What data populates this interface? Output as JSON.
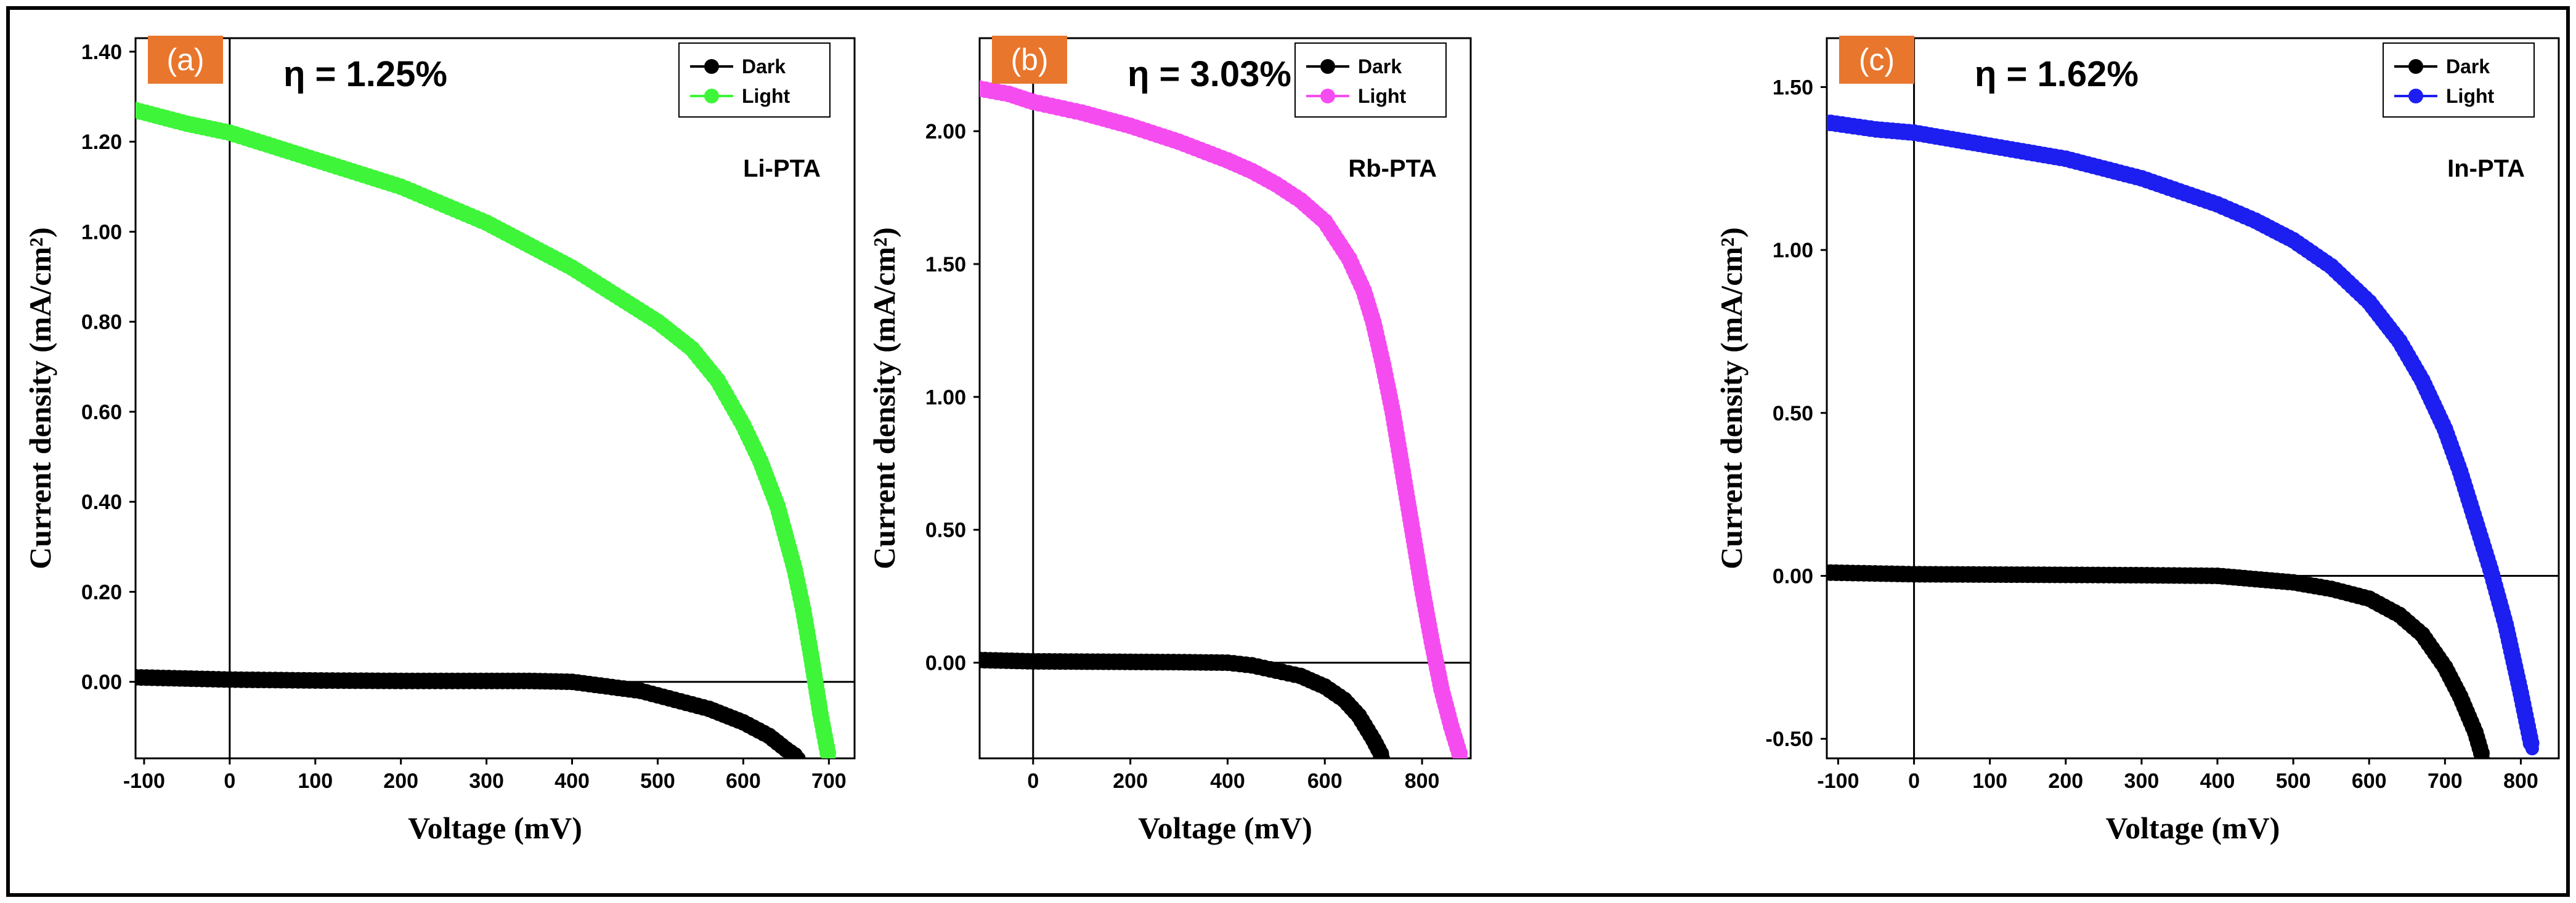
{
  "figure": {
    "panel_badge_color": "#e8762d",
    "dark_color": "#000000"
  },
  "chart_data": [
    {
      "type": "line",
      "panel_label": "(a)",
      "efficiency_label": "η = 1.25%",
      "material_label": "Li-PTA",
      "xlabel": "Voltage (mV)",
      "ylabel": "Current density (mA/cm²)",
      "xlim": [
        -110,
        730
      ],
      "ylim": [
        -0.17,
        1.43
      ],
      "xticks": [
        -100,
        0,
        100,
        200,
        300,
        400,
        500,
        600,
        700
      ],
      "yticks": [
        0.0,
        0.2,
        0.4,
        0.6,
        0.8,
        1.0,
        1.2,
        1.4
      ],
      "ytick_format": 2,
      "legend": [
        "Dark",
        "Light"
      ],
      "series": [
        {
          "name": "Dark",
          "color": "#000000",
          "x": [
            -110,
            0,
            100,
            200,
            300,
            350,
            400,
            440,
            480,
            520,
            560,
            600,
            630,
            650,
            665
          ],
          "y": [
            0.01,
            0.005,
            0.003,
            0.002,
            0.002,
            0.002,
            0.0,
            -0.01,
            -0.02,
            -0.04,
            -0.06,
            -0.09,
            -0.12,
            -0.15,
            -0.17
          ]
        },
        {
          "name": "Light",
          "color": "#3ef53a",
          "x": [
            -110,
            -50,
            0,
            50,
            100,
            150,
            200,
            250,
            300,
            350,
            400,
            450,
            500,
            540,
            570,
            600,
            620,
            640,
            660,
            670,
            680,
            690,
            700
          ],
          "y": [
            1.27,
            1.24,
            1.22,
            1.19,
            1.16,
            1.13,
            1.1,
            1.06,
            1.02,
            0.97,
            0.92,
            0.86,
            0.8,
            0.74,
            0.67,
            0.57,
            0.49,
            0.39,
            0.25,
            0.16,
            0.05,
            -0.07,
            -0.17
          ]
        }
      ]
    },
    {
      "type": "line",
      "panel_label": "(b)",
      "efficiency_label": "η = 3.03%",
      "material_label": "Rb-PTA",
      "xlabel": "Voltage (mV)",
      "ylabel": "Current density (mA/cm²)",
      "xlim": [
        -110,
        900
      ],
      "ylim": [
        -0.36,
        2.35
      ],
      "xticks": [
        0,
        200,
        400,
        600,
        800
      ],
      "yticks": [
        0.0,
        0.5,
        1.0,
        1.5,
        2.0
      ],
      "ytick_format": 2,
      "legend": [
        "Dark",
        "Light"
      ],
      "series": [
        {
          "name": "Dark",
          "color": "#000000",
          "x": [
            -110,
            0,
            100,
            200,
            300,
            400,
            450,
            500,
            550,
            600,
            640,
            670,
            700,
            720
          ],
          "y": [
            0.01,
            0.005,
            0.004,
            0.003,
            0.002,
            0.0,
            -0.01,
            -0.03,
            -0.05,
            -0.09,
            -0.14,
            -0.2,
            -0.29,
            -0.36
          ]
        },
        {
          "name": "Light",
          "color": "#f54cf0",
          "x": [
            -110,
            -50,
            0,
            50,
            100,
            200,
            300,
            400,
            450,
            500,
            550,
            600,
            650,
            680,
            700,
            720,
            740,
            760,
            780,
            800,
            820,
            840,
            860,
            880
          ],
          "y": [
            2.16,
            2.14,
            2.11,
            2.09,
            2.07,
            2.02,
            1.96,
            1.89,
            1.85,
            1.8,
            1.74,
            1.66,
            1.52,
            1.4,
            1.28,
            1.12,
            0.94,
            0.72,
            0.5,
            0.28,
            0.08,
            -0.1,
            -0.24,
            -0.36
          ]
        }
      ]
    },
    {
      "type": "line",
      "panel_label": "(c)",
      "efficiency_label": "η = 1.62%",
      "material_label": "In-PTA",
      "xlabel": "Voltage (mV)",
      "ylabel": "Current density (mA/cm²)",
      "xlim": [
        -115,
        850
      ],
      "ylim": [
        -0.56,
        1.65
      ],
      "xticks": [
        -100,
        0,
        100,
        200,
        300,
        400,
        500,
        600,
        700,
        800
      ],
      "yticks": [
        -0.5,
        0.0,
        0.5,
        1.0,
        1.5
      ],
      "ytick_format": 2,
      "legend": [
        "Dark",
        "Light"
      ],
      "series": [
        {
          "name": "Dark",
          "color": "#000000",
          "x": [
            -110,
            0,
            100,
            200,
            300,
            400,
            450,
            500,
            550,
            600,
            640,
            670,
            700,
            720,
            740,
            750
          ],
          "y": [
            0.01,
            0.005,
            0.004,
            0.003,
            0.002,
            0.0,
            -0.01,
            -0.02,
            -0.04,
            -0.07,
            -0.12,
            -0.18,
            -0.28,
            -0.37,
            -0.48,
            -0.56
          ]
        },
        {
          "name": "Light",
          "color": "#1d1ff0",
          "x": [
            -110,
            -50,
            0,
            50,
            100,
            200,
            300,
            400,
            450,
            500,
            550,
            600,
            640,
            670,
            700,
            720,
            740,
            760,
            780,
            800,
            815
          ],
          "y": [
            1.39,
            1.37,
            1.36,
            1.34,
            1.32,
            1.28,
            1.22,
            1.14,
            1.09,
            1.03,
            0.95,
            0.84,
            0.72,
            0.6,
            0.45,
            0.32,
            0.17,
            0.02,
            -0.15,
            -0.36,
            -0.53
          ]
        }
      ]
    }
  ]
}
